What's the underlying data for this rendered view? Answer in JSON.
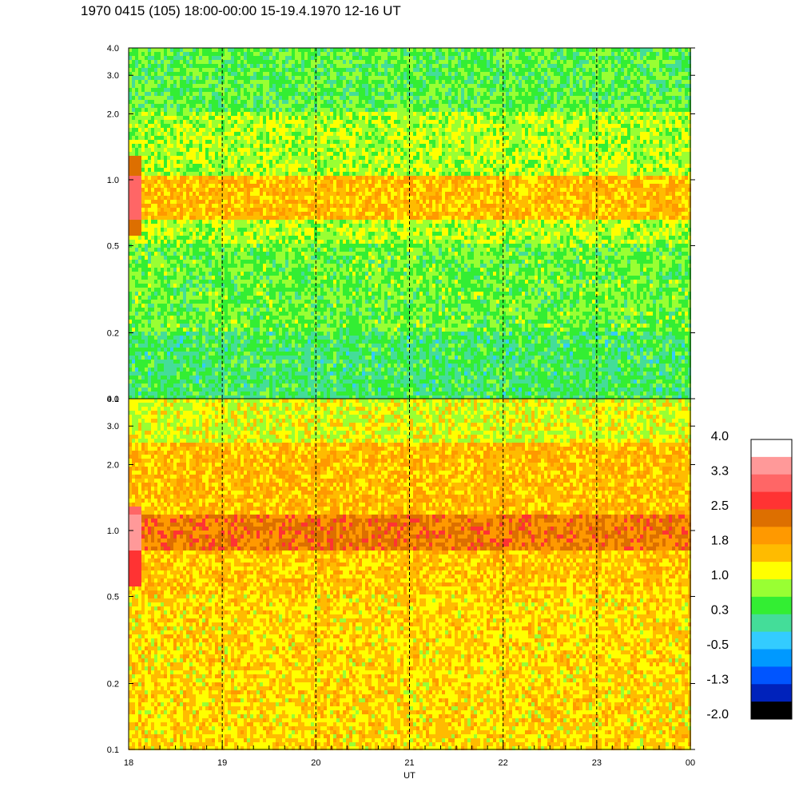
{
  "title": "1970 0415 (105) 18:00-00:00 15-19.4.1970  12-16 UT",
  "chart_data": {
    "type": "heatmap",
    "panels": [
      {
        "name": "",
        "y_scale": "log",
        "ylim": [
          0.1,
          4.0
        ],
        "y_ticks": [
          "0.1",
          "0.2",
          "0.5",
          "1.0",
          "2.0",
          "3.0",
          "4.0"
        ],
        "y_tick_values": [
          0.1,
          0.2,
          0.5,
          1.0,
          2.0,
          3.0,
          4.0
        ],
        "bands": [
          {
            "y_from": 0.1,
            "y_to": 0.2,
            "level": 0.3
          },
          {
            "y_from": 0.2,
            "y_to": 0.5,
            "level": 0.6
          },
          {
            "y_from": 0.5,
            "y_to": 0.65,
            "level": 0.9
          },
          {
            "y_from": 0.65,
            "y_to": 1.05,
            "level": 1.6
          },
          {
            "y_from": 1.05,
            "y_to": 2.0,
            "level": 0.9
          },
          {
            "y_from": 2.0,
            "y_to": 4.0,
            "level": 0.5
          }
        ]
      },
      {
        "name": "",
        "y_scale": "log",
        "ylim": [
          0.1,
          4.0
        ],
        "y_ticks": [
          "0.1",
          "0.2",
          "0.5",
          "1.0",
          "2.0",
          "3.0",
          "4.0"
        ],
        "y_tick_values": [
          0.1,
          0.2,
          0.5,
          1.0,
          2.0,
          3.0,
          4.0
        ],
        "bands": [
          {
            "y_from": 0.1,
            "y_to": 0.5,
            "level": 1.4
          },
          {
            "y_from": 0.5,
            "y_to": 0.82,
            "level": 1.5
          },
          {
            "y_from": 0.82,
            "y_to": 1.2,
            "level": 2.2
          },
          {
            "y_from": 1.2,
            "y_to": 2.5,
            "level": 1.6
          },
          {
            "y_from": 2.5,
            "y_to": 4.0,
            "level": 1.1
          }
        ]
      }
    ],
    "x_ticks": [
      "18",
      "19",
      "20",
      "21",
      "22",
      "23",
      "00"
    ],
    "x_tick_values": [
      18,
      19,
      20,
      21,
      22,
      23,
      24
    ],
    "xlim": [
      18,
      24
    ],
    "xlabel": "UT",
    "ylabel": "",
    "grid_x_dashed": [
      19,
      20,
      21,
      22,
      23
    ],
    "colorbar": {
      "range": [
        -2.0,
        4.0
      ],
      "labels": [
        "4.0",
        "3.3",
        "2.5",
        "1.8",
        "1.0",
        "0.3",
        "-0.5",
        "-1.3",
        "-2.0"
      ],
      "colors_top_to_bottom": [
        "#ffffff",
        "#ff9999",
        "#ff6666",
        "#ff3333",
        "#dd6f00",
        "#ff9900",
        "#ffbb00",
        "#ffff00",
        "#99ff33",
        "#33ee33",
        "#44dd99",
        "#33ccff",
        "#0099ff",
        "#0055ff",
        "#0022bb",
        "#000000"
      ]
    },
    "legend_placement": "right"
  }
}
